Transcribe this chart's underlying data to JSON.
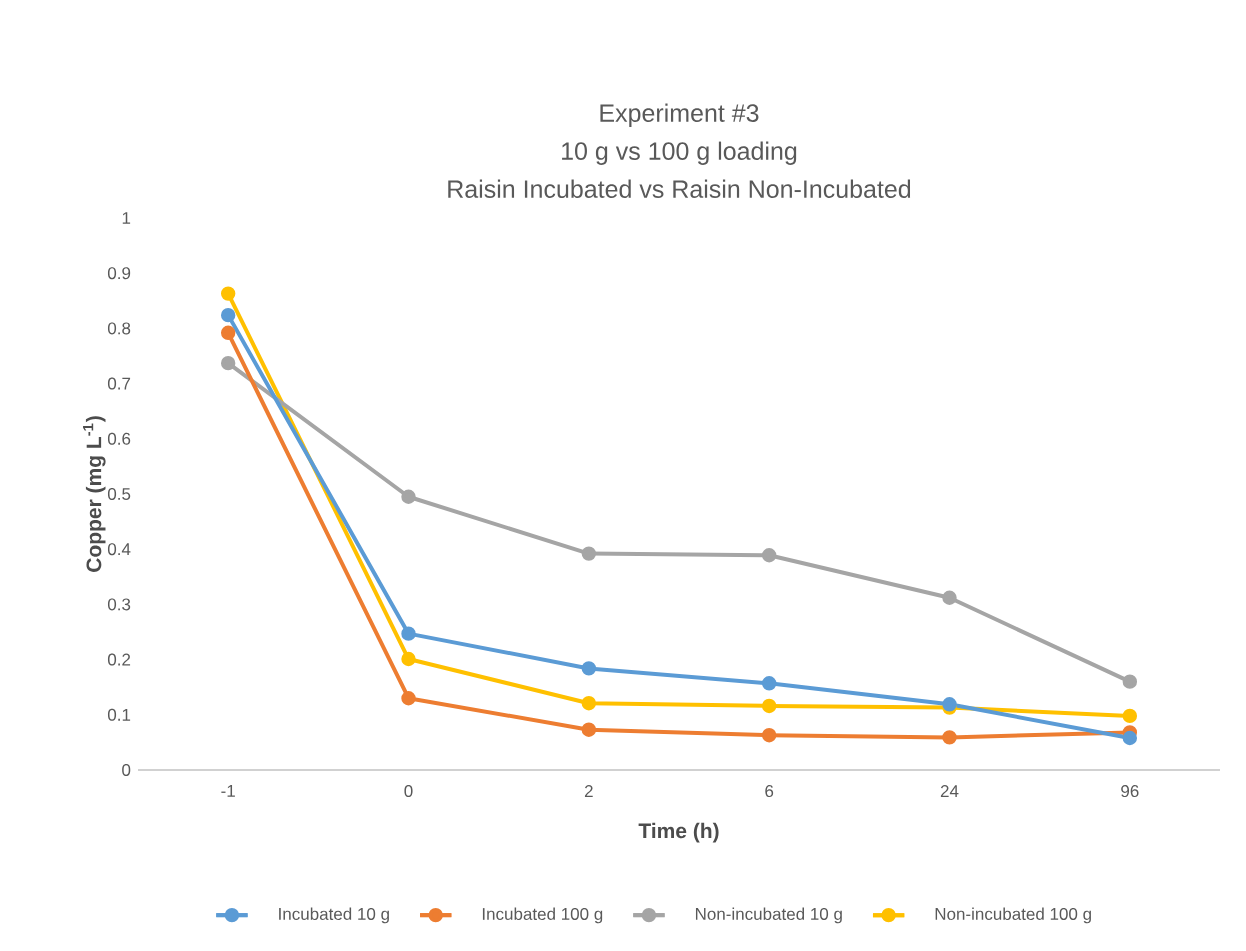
{
  "chart_data": {
    "type": "line",
    "title": [
      "Experiment #3",
      "10 g vs 100 g loading",
      "Raisin Incubated vs Raisin Non-Incubated"
    ],
    "xlabel": "Time (h)",
    "ylabel": "Copper (mg L$^{-1}$)",
    "categories": [
      "-1",
      "0",
      "2",
      "6",
      "24",
      "96"
    ],
    "series": [
      {
        "name": "Incubated 10 g",
        "color": "#5b9bd5",
        "values": [
          0.824,
          0.247,
          0.184,
          0.157,
          0.119,
          0.058
        ]
      },
      {
        "name": "Incubated 100 g",
        "color": "#ed7d31",
        "values": [
          0.792,
          0.13,
          0.073,
          0.063,
          0.059,
          0.068
        ]
      },
      {
        "name": "Non-incubated 10 g",
        "color": "#a5a5a5",
        "values": [
          0.737,
          0.495,
          0.392,
          0.389,
          0.312,
          0.16
        ]
      },
      {
        "name": "Non-incubated 100 g",
        "color": "#ffc000",
        "values": [
          0.863,
          0.201,
          0.121,
          0.116,
          0.113,
          0.098
        ]
      }
    ],
    "ylim": [
      0,
      1
    ],
    "yticks": [
      0,
      0.1,
      0.2,
      0.3,
      0.4,
      0.5,
      0.6,
      0.7,
      0.8,
      0.9,
      1
    ],
    "grid": false,
    "legend": "bottom",
    "marker": "circle",
    "line_style": "solid"
  }
}
